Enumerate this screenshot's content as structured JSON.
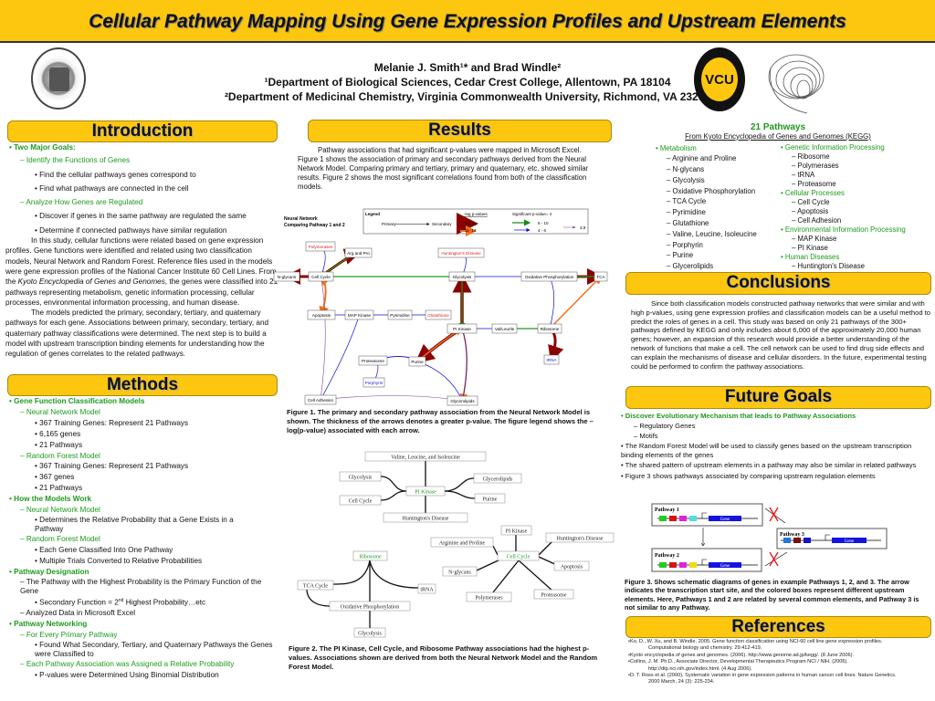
{
  "header": {
    "title": "Cellular Pathway Mapping Using Gene Expression Profiles and Upstream Elements",
    "authors": "Melanie J. Smith¹* and Brad Windle²",
    "affil1": "¹Department of Biological Sciences, Cedar Crest College, Allentown, PA 18104",
    "affil2": "²Department of Medicinal Chemistry, Virginia Commonwealth University, Richmond, VA 23298",
    "logo_left": "Cedar Crest College 1867",
    "logo_vcu": "VCU",
    "logo_vcu_ring": "Virginia Commonwealth University"
  },
  "colors": {
    "header": "#fdc70f",
    "green": "#1e9a1e",
    "darkred": "#8b0000",
    "orange": "#f07020",
    "blue": "#1010d0",
    "purple": "#8040a0"
  },
  "introduction": {
    "heading": "Introduction",
    "goals": "Two Major Goals:",
    "g1": "Identify the Functions of Genes",
    "g1a": "Find the cellular pathways genes correspond to",
    "g1b": "Find what pathways are connected in the cell",
    "g2": "Analyze How Genes are Regulated",
    "g2a": "Discover if genes in the same pathway are regulated the same",
    "g2b": "Determine if connected pathways have similar regulation",
    "p1a": "In this study, cellular functions were related based on gene expression profiles.  Gene functions were identified and related using two classification models, Neural Network and Random Forest.  Reference files used in the models were gene expression profiles of the National Cancer Institute 60 Cell Lines. From the ",
    "p1i": "Kyoto Encyclopedia of Genes and Genomes",
    "p1b": ", the genes were classified into 21 pathways representing metabolism, genetic information processing, cellular processes, environmental information processing, and human disease.",
    "p2": "The models predicted the primary, secondary, tertiary, and quaternary pathways for each gene.  Associations between primary, secondary, tertiary, and quaternary pathway classifications were determined.  The next step is to build a model with upstream transcription binding elements for understanding how the regulation of genes correlates to the related pathways."
  },
  "methods": {
    "heading": "Methods",
    "a": "Gene Function Classification Models",
    "a1": "Neural Network Model",
    "a1a": "367 Training Genes: Represent 21 Pathways",
    "a1b": "6,165 genes",
    "a1c": "21 Pathways",
    "a2": "Random Forest Model",
    "a2a": "367 Training Genes: Represent 21 Pathways",
    "a2b": "367 genes",
    "a2c": "21 Pathways",
    "b": "How the Models Work",
    "b1": "Neural Network Model",
    "b1a": "Determines the Relative Probability that a Gene Exists in a Pathway",
    "b2": "Random Forest Model",
    "b2a": "Each Gene Classified Into One Pathway",
    "b2b": "Multiple Trials Converted to Relative Probabilities",
    "c": "Pathway Designation",
    "c1": "The Pathway with the Highest Probability is the Primary Function of the Gene",
    "c1a_pre": "Secondary Function = 2",
    "c1a_sup": "nd",
    "c1a_post": " Highest Probability…etc",
    "c2": "Analyzed Data in Microsoft Excel",
    "d": "Pathway Networking",
    "d1": "For Every Primary Pathway",
    "d1a": "Found What Secondary, Tertiary, and Quaternary Pathways the Genes were Classified to",
    "d2": "Each Pathway Association was Assigned a Relative Probability",
    "d2a": "P-values were Determined Using Binomial Distribution"
  },
  "results": {
    "heading": "Results",
    "text": "Pathway associations that had significant p-values were mapped in Microsoft Excel.  Figure 1 shows the association of primary and secondary pathways derived from the Neural Network Model.  Comparing primary and tertiary, primary and quaternary, etc. showed similar results.  Figure 2 shows the most significant correlations found from both of the classification models.",
    "fig1": {
      "title1": "Neural Network",
      "title2": "Comparing Pathway 1 and 2",
      "legend": {
        "title": "Legend",
        "primary": "Primary",
        "secondary": "Secondary",
        "col1": "-log p-values",
        "col2": "Significant p-value= 4",
        "v1": "18- 39",
        "v2": "11- 14",
        "v3": "6 - 10",
        "v4": "4 - 6",
        "v5": "3.9"
      },
      "nodes": [
        "Polymerases",
        "Arg and Pro",
        "Huntington's Disease",
        "N-glycans",
        "Cell Cycle",
        "Glycolysis",
        "Oxidative Phosphorylation",
        "TCA",
        "Apoptosis",
        "MAP Kinase",
        "Pyrimidine",
        "Glutathione",
        "PI Kinase",
        "Val/Leu/Ile",
        "Ribosome",
        "tRNA",
        "Proteasome",
        "Purine",
        "Porphyrin",
        "Cell Adhesion",
        "Glycerolipids"
      ],
      "caption": "Figure 1. The primary and secondary pathway association from the Neural Network Model is shown.  The thickness of the arrows denotes a greater p-value.  The figure legend shows the –log(p-value) associated with each arrow."
    },
    "fig2": {
      "nodes": [
        "Valine, Leucine, and Isoleucine",
        "Glycolysis",
        "PI Kinase",
        "Glycerolipids",
        "Cell Cycle",
        "Purine",
        "Huntington's Disease",
        "PI Kinase",
        "Arginine and Proline",
        "Huntington's Disease",
        "Ribosome",
        "Cell Cycle",
        "N-glycans",
        "Apoptosis",
        "TCA Cycle",
        "tRNA",
        "Polymerases",
        "Proteasome",
        "Oxidative Phosphorylation",
        "Glycolysis"
      ],
      "caption": "Figure 2. The PI Kinase, Cell Cycle, and Ribosome Pathway associations had the highest  p-values.  Associations shown are derived from both the Neural Network Model and the Random Forest Model."
    }
  },
  "pathways": {
    "heading": "21 Pathways",
    "subheading": "From Kyoto Encyclopedia of Genes and Genomes (KEGG)",
    "metabolism": {
      "label": "Metabolism",
      "items": [
        "Arginine and Proline",
        "N-glycans",
        "Glycolysis",
        "Oxidative Phosphorylation",
        "TCA Cycle",
        "Pyrimidine",
        "Glutathione",
        "Valine, Leucine, Isoleucine",
        "Porphyrin",
        "Purine",
        "Glycerolipids"
      ]
    },
    "groups": [
      {
        "label": "Genetic Information Processing",
        "items": [
          "Ribosome",
          "Polymerases",
          "tRNA",
          "Proteasome"
        ]
      },
      {
        "label": "Cellular Processes",
        "items": [
          "Cell Cycle",
          "Apoptosis",
          "Cell Adhesion"
        ]
      },
      {
        "label": "Environmental Information Processing",
        "items": [
          "MAP Kinase",
          "PI Kinase"
        ]
      },
      {
        "label": "Human Diseases",
        "items": [
          "Huntington's Disease"
        ]
      }
    ]
  },
  "conclusions": {
    "heading": "Conclusions",
    "text": "Since both classification models constructed pathway networks that were similar and with high p-values, using gene expression profiles and classification models can be a useful method to predict the roles of genes in a cell.  This study was based on only 21 pathways of the 300+ pathways defined by KEGG and only includes about 6,000 of the approximately 20,000 human genes; however,  an expansion of this research would provide a better understanding of the network of functions that make a cell.  The cell network can be used to find drug side effects and can explain the mechanisms of disease and cellular disorders.  In the future, experimental testing could be performed to confirm the pathway associations."
  },
  "future": {
    "heading": "Future Goals",
    "a": "Discover Evolutionary Mechanism that leads to Pathway Associations",
    "a1": "Regulatory Genes",
    "a2": "Motifs",
    "b": "The Random Forest Model will be used to classify genes based on the upstream transcription binding elements of the genes",
    "c": "The shared pattern of upstream elements in a pathway may also be similar in related pathways",
    "d": "Figure 3 shows pathways associated by comparing upstream regulation elements",
    "fig3": {
      "p1": "Pathway 1",
      "p2": "Pathway 2",
      "p3": "Pathway 3",
      "gene": "Gene",
      "caption": "Figure 3. Shows schematic diagrams of genes in example Pathways 1, 2, and 3. The arrow indicates the transcription start site, and the colored boxes represent different upstream elements.  Here, Pathways 1 and 2 are related by several common elements, and Pathway 3 is not similar to any Pathway."
    }
  },
  "references": {
    "heading": "References",
    "items": [
      {
        "a": "•Ko, D., W. Xu, and B. Windle. 2005. Gene function classification using NCI-60 cell line gene expression profiles.",
        "b": "Computational biology and chemistry. 29:412-419."
      },
      {
        "a": "•Kyoto encyclopedia of genes and genomes. (2006).  http://www.genome.ad.jp/kegg/. (8 June 2006).",
        "b": ""
      },
      {
        "a": "•Collins, J. M. Ph.D., Associate Director, Developmental Therapeutics Program NCI / NIH. (2006).",
        "b": "http://dtp.nci.nih.gov/index.html. (4 Aug 2006)."
      },
      {
        "a": "•D. T. Ross et al. (2000). Systematic variation in gene expression  patterns in human cancer cell lines. Nature Genetics.",
        "b": "2000 March, 24 (3): 225-234."
      }
    ]
  }
}
